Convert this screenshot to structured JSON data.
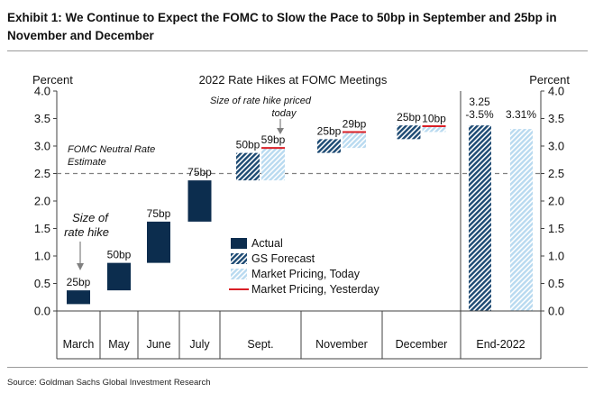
{
  "exhibit_title": "Exhibit 1: We Continue to Expect the FOMC to Slow the Pace to 50bp in September and 25bp in November and December",
  "source": "Source: Goldman Sachs Global Investment Research",
  "colors": {
    "actual": "#0c2d4e",
    "gs_forecast": "#1d4a73",
    "market_today": "#b9daf0",
    "market_yesterday": "#d91f26",
    "neutral": "#808080",
    "axis": "#404040"
  },
  "chart_data": {
    "type": "bar",
    "title": "2022 Rate Hikes at FOMC Meetings",
    "ylabel_left": "Percent",
    "ylabel_right": "Percent",
    "ylim": [
      0,
      4
    ],
    "yticks": [
      "0.0",
      "0.5",
      "1.0",
      "1.5",
      "2.0",
      "2.5",
      "3.0",
      "3.5",
      "4.0"
    ],
    "categories": [
      "March",
      "May",
      "June",
      "July",
      "Sept.",
      "November",
      "December",
      "End-2022"
    ],
    "neutral_rate": {
      "value": 2.5,
      "label_line1": "FOMC Neutral Rate",
      "label_line2": "Estimate"
    },
    "actual": [
      {
        "category": "March",
        "low": 0.125,
        "high": 0.375,
        "label": "25bp"
      },
      {
        "category": "May",
        "low": 0.375,
        "high": 0.875,
        "label": "50bp"
      },
      {
        "category": "June",
        "low": 0.875,
        "high": 1.625,
        "label": "75bp"
      },
      {
        "category": "July",
        "low": 1.625,
        "high": 2.375,
        "label": "75bp"
      }
    ],
    "gs_forecast": [
      {
        "category": "Sept.",
        "low": 2.375,
        "high": 2.875,
        "label": "50bp"
      },
      {
        "category": "November",
        "low": 2.875,
        "high": 3.125,
        "label": "25bp"
      },
      {
        "category": "December",
        "low": 3.125,
        "high": 3.375,
        "label": "25bp"
      },
      {
        "category": "End-2022",
        "low": 0,
        "high": 3.375,
        "label_line1": "3.25",
        "label_line2": "-3.5%"
      }
    ],
    "market_today": [
      {
        "category": "Sept.",
        "low": 2.375,
        "high": 2.965,
        "label": "59bp"
      },
      {
        "category": "November",
        "low": 2.965,
        "high": 3.255,
        "label": "29bp"
      },
      {
        "category": "December",
        "low": 3.255,
        "high": 3.355,
        "label": "10bp"
      },
      {
        "category": "End-2022",
        "low": 0,
        "high": 3.31,
        "label": "3.31%"
      }
    ],
    "market_yesterday": [
      {
        "category": "Sept.",
        "value": 2.965
      },
      {
        "category": "November",
        "value": 3.255
      },
      {
        "category": "December",
        "value": 3.36
      }
    ],
    "annotations": {
      "size_of_rate_hike_line1": "Size of",
      "size_of_rate_hike_line2": "rate hike",
      "priced_line1": "Size of rate hike priced",
      "priced_line2": "today"
    },
    "legend": {
      "position": "center-right",
      "items": [
        "Actual",
        "GS Forecast",
        "Market Pricing, Today",
        "Market Pricing, Yesterday"
      ]
    }
  }
}
